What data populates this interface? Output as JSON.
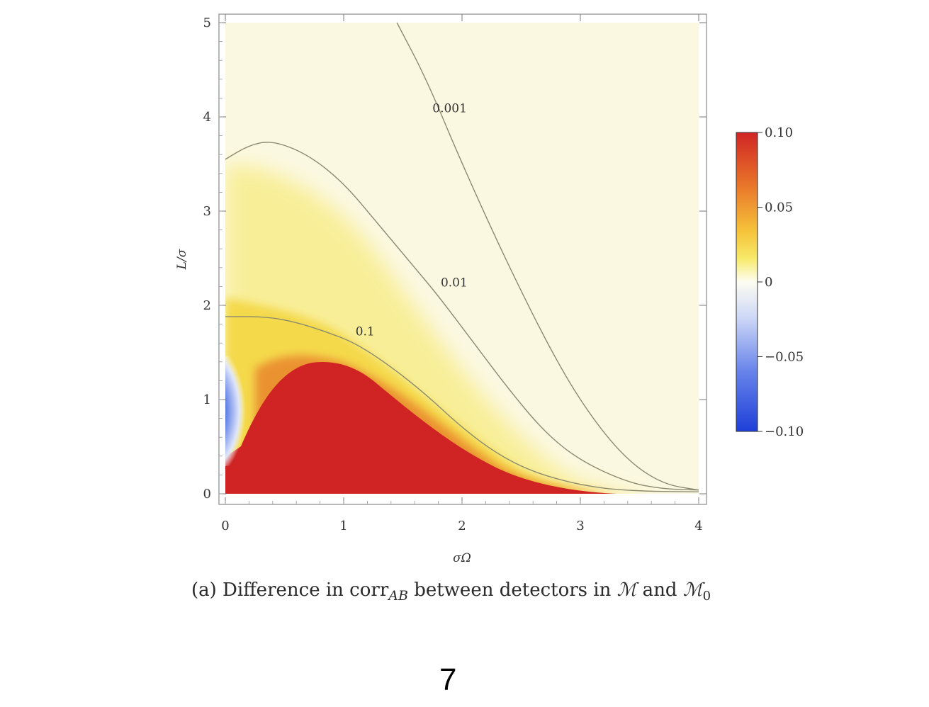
{
  "chart_data": {
    "type": "heatmap",
    "x": {
      "label": "σΩ",
      "range": [
        0,
        4
      ],
      "ticks": [
        "0",
        "1",
        "2",
        "3",
        "4"
      ]
    },
    "y": {
      "label": "L/σ",
      "range": [
        0,
        5
      ],
      "ticks": [
        "0",
        "1",
        "2",
        "3",
        "4",
        "5"
      ]
    },
    "colorbar": {
      "range": [
        -0.1,
        0.1
      ],
      "ticks": [
        "0.10",
        "0.05",
        "0",
        "−0.05",
        "−0.10"
      ],
      "tick_values": [
        0.1,
        0.05,
        0,
        -0.05,
        -0.1
      ],
      "colors": {
        "high": "#d02424",
        "mid_high": "#f6e84a",
        "zero": "#fbfbf0",
        "low": "#1e3fd8"
      }
    },
    "contours": [
      {
        "level_label": "0.001",
        "label_at": [
          1.75,
          4.05
        ],
        "points": [
          [
            1.45,
            5.0
          ],
          [
            1.7,
            4.4
          ],
          [
            2.0,
            3.5
          ],
          [
            2.4,
            2.4
          ],
          [
            2.8,
            1.4
          ],
          [
            3.1,
            0.8
          ],
          [
            3.4,
            0.35
          ],
          [
            3.7,
            0.1
          ],
          [
            4.0,
            0.04
          ]
        ]
      },
      {
        "level_label": "0.01",
        "label_at": [
          1.82,
          2.2
        ],
        "points": [
          [
            0,
            3.55
          ],
          [
            0.2,
            3.7
          ],
          [
            0.4,
            3.75
          ],
          [
            0.7,
            3.6
          ],
          [
            1.0,
            3.3
          ],
          [
            1.3,
            2.85
          ],
          [
            1.6,
            2.4
          ],
          [
            1.8,
            2.1
          ],
          [
            2.1,
            1.6
          ],
          [
            2.4,
            1.1
          ],
          [
            2.7,
            0.65
          ],
          [
            3.0,
            0.35
          ],
          [
            3.4,
            0.12
          ],
          [
            3.7,
            0.05
          ],
          [
            4.0,
            0.04
          ]
        ]
      },
      {
        "level_label": "0.1",
        "label_at": [
          1.1,
          1.68
        ],
        "points": [
          [
            0,
            1.88
          ],
          [
            0.35,
            1.88
          ],
          [
            0.6,
            1.82
          ],
          [
            0.85,
            1.72
          ],
          [
            1.1,
            1.6
          ],
          [
            1.4,
            1.35
          ],
          [
            1.7,
            1.05
          ],
          [
            2.0,
            0.7
          ],
          [
            2.3,
            0.42
          ],
          [
            2.6,
            0.23
          ],
          [
            3.0,
            0.09
          ],
          [
            3.4,
            0.03
          ],
          [
            4.0,
            0.02
          ]
        ]
      }
    ]
  },
  "caption": {
    "prefix": "(a) Difference in corr",
    "subscript": "AB",
    "middle": " between detectors in ",
    "m_symbol": "ℳ",
    "and_text": " and ",
    "m0_subscript": "0"
  },
  "page_number": "7"
}
